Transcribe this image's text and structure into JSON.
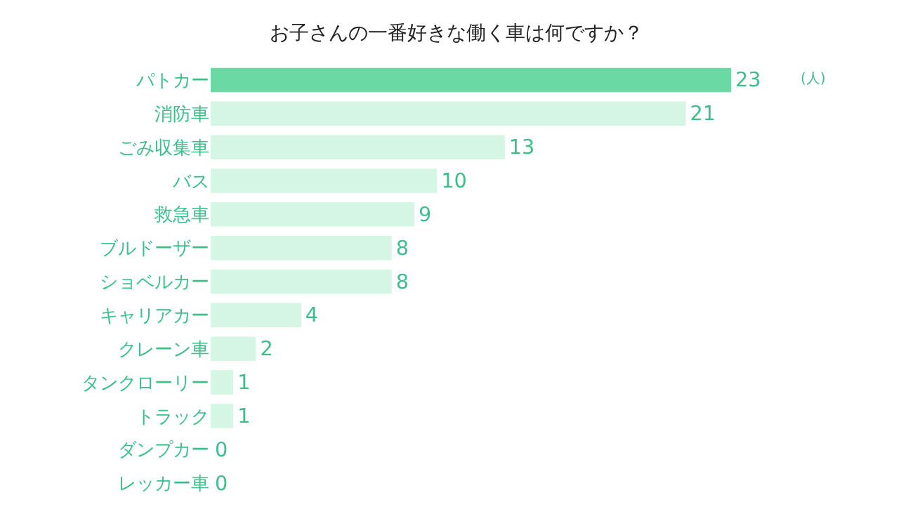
{
  "chart_data": {
    "type": "bar",
    "orientation": "horizontal",
    "title": "お子さんの一番好きな働く車は何ですか？",
    "categories": [
      "パトカー",
      "消防車",
      "ごみ収集車",
      "バス",
      "救急車",
      "ブルドーザー",
      "ショベルカー",
      "キャリアカー",
      "クレーン車",
      "タンクローリー",
      "トラック",
      "ダンプカー",
      "レッカー車"
    ],
    "values": [
      23,
      21,
      13,
      10,
      9,
      8,
      8,
      4,
      2,
      1,
      1,
      0,
      0
    ],
    "colors": [
      "#6ad9a4",
      "#d5f5e5",
      "#d5f5e5",
      "#d5f5e5",
      "#d5f5e5",
      "#d5f5e5",
      "#d5f5e5",
      "#d5f5e5",
      "#d5f5e5",
      "#d5f5e5",
      "#d5f5e5",
      "#d5f5e5",
      "#d5f5e5"
    ],
    "tick_labels": "y",
    "data_labels": true,
    "annotations": [
      "(人)"
    ]
  }
}
